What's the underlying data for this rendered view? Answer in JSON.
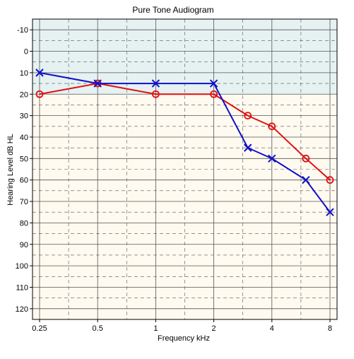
{
  "chart_data": {
    "type": "line",
    "title": "Pure Tone Audiogram",
    "xlabel": "Frequency kHz",
    "ylabel": "Hearing Level dB HL",
    "x_scale": "log2",
    "x_ticks": [
      {
        "value": 0.25,
        "label": "0.25"
      },
      {
        "value": 0.5,
        "label": "0.5"
      },
      {
        "value": 1,
        "label": "1"
      },
      {
        "value": 2,
        "label": "2"
      },
      {
        "value": 4,
        "label": "4"
      },
      {
        "value": 8,
        "label": "8"
      }
    ],
    "y_ticks": [
      -10,
      0,
      10,
      20,
      30,
      40,
      50,
      60,
      70,
      80,
      90,
      100,
      110,
      120
    ],
    "ylim": [
      -15,
      125
    ],
    "y_inverted": true,
    "normal_band": [
      -15,
      20
    ],
    "grid": true,
    "series": [
      {
        "marker": "o",
        "color": "#e01010",
        "points": [
          {
            "x": 0.25,
            "y": 20
          },
          {
            "x": 0.5,
            "y": 15
          },
          {
            "x": 1,
            "y": 20
          },
          {
            "x": 2,
            "y": 20
          },
          {
            "x": 3,
            "y": 30
          },
          {
            "x": 4,
            "y": 35
          },
          {
            "x": 6,
            "y": 50
          },
          {
            "x": 8,
            "y": 60
          }
        ]
      },
      {
        "marker": "x",
        "color": "#1010c8",
        "points": [
          {
            "x": 0.25,
            "y": 10
          },
          {
            "x": 0.5,
            "y": 15
          },
          {
            "x": 1,
            "y": 15
          },
          {
            "x": 2,
            "y": 15
          },
          {
            "x": 3,
            "y": 45
          },
          {
            "x": 4,
            "y": 50
          },
          {
            "x": 6,
            "y": 60
          },
          {
            "x": 8,
            "y": 75
          }
        ]
      }
    ],
    "colors": {
      "normal_band": "#e6f2f2",
      "impaired_band": "#fffaf0",
      "grid": "#555555"
    }
  }
}
